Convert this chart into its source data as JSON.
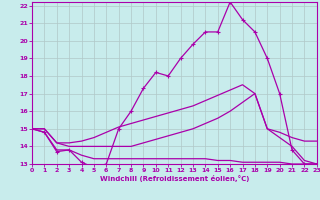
{
  "xlabel": "Windchill (Refroidissement éolien,°C)",
  "background_color": "#c8ecec",
  "grid_color": "#b0c8c8",
  "line_color": "#aa00aa",
  "xmin": 0,
  "xmax": 23,
  "ymin": 13,
  "ymax": 22,
  "line1_x": [
    0,
    1,
    2,
    3,
    4,
    5,
    6,
    7,
    8,
    9,
    10,
    11,
    12,
    13,
    14,
    15,
    16,
    17,
    18,
    19,
    20,
    21,
    22,
    23
  ],
  "line1_y": [
    15.0,
    14.8,
    13.7,
    13.8,
    13.1,
    12.8,
    13.0,
    15.0,
    16.0,
    17.3,
    18.2,
    18.0,
    19.0,
    19.8,
    20.5,
    20.5,
    22.2,
    21.2,
    20.5,
    19.0,
    17.0,
    13.8,
    13.0,
    13.0
  ],
  "line2_x": [
    0,
    1,
    2,
    3,
    4,
    5,
    6,
    7,
    8,
    9,
    10,
    11,
    12,
    13,
    14,
    15,
    16,
    17,
    18,
    19,
    20,
    21,
    22,
    23
  ],
  "line2_y": [
    15.0,
    15.0,
    14.2,
    14.2,
    14.3,
    14.5,
    14.8,
    15.1,
    15.3,
    15.5,
    15.7,
    15.9,
    16.1,
    16.3,
    16.6,
    16.9,
    17.2,
    17.5,
    17.0,
    15.0,
    14.8,
    14.5,
    14.3,
    14.3
  ],
  "line3_x": [
    0,
    1,
    2,
    3,
    4,
    5,
    6,
    7,
    8,
    9,
    10,
    11,
    12,
    13,
    14,
    15,
    16,
    17,
    18,
    19,
    20,
    21,
    22,
    23
  ],
  "line3_y": [
    15.0,
    14.8,
    13.8,
    13.8,
    13.5,
    13.3,
    13.3,
    13.3,
    13.3,
    13.3,
    13.3,
    13.3,
    13.3,
    13.3,
    13.3,
    13.2,
    13.2,
    13.1,
    13.1,
    13.1,
    13.1,
    13.0,
    13.0,
    13.0
  ],
  "line4_x": [
    0,
    1,
    2,
    3,
    4,
    5,
    6,
    7,
    8,
    9,
    10,
    11,
    12,
    13,
    14,
    15,
    16,
    17,
    18,
    19,
    20,
    21,
    22,
    23
  ],
  "line4_y": [
    15.0,
    15.0,
    14.2,
    14.0,
    14.0,
    14.0,
    14.0,
    14.0,
    14.0,
    14.2,
    14.4,
    14.6,
    14.8,
    15.0,
    15.3,
    15.6,
    16.0,
    16.5,
    17.0,
    15.0,
    14.5,
    14.0,
    13.2,
    13.0
  ]
}
